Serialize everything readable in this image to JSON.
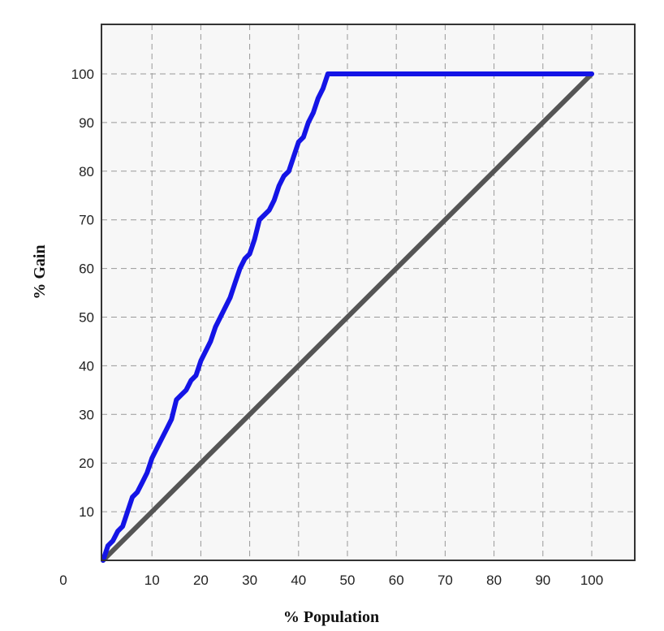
{
  "chart_data": {
    "type": "line",
    "title": "",
    "xlabel": "% Population",
    "ylabel": "% Gain",
    "xlim": [
      0,
      100
    ],
    "ylim": [
      0,
      110
    ],
    "x_ticks": [
      0,
      10,
      20,
      30,
      40,
      50,
      60,
      70,
      80,
      90,
      100
    ],
    "x_tick_labels": [
      "0",
      "10",
      "20",
      "30",
      "40",
      "50",
      "60",
      "70",
      "80",
      "90",
      "100"
    ],
    "y_ticks": [
      10,
      20,
      30,
      40,
      50,
      60,
      70,
      80,
      90,
      100
    ],
    "y_tick_labels": [
      "10",
      "20",
      "30",
      "40",
      "50",
      "60",
      "70",
      "80",
      "90",
      "100"
    ],
    "grid": true,
    "grid_style": "dashed",
    "legend": "none",
    "series": [
      {
        "color": "#1414e6",
        "x": [
          0,
          1,
          2,
          3,
          4,
          5,
          6,
          7,
          8,
          9,
          10,
          11,
          12,
          13,
          14,
          15,
          16,
          17,
          18,
          19,
          20,
          21,
          22,
          23,
          24,
          25,
          26,
          27,
          28,
          29,
          30,
          31,
          32,
          33,
          34,
          35,
          36,
          37,
          38,
          39,
          40,
          41,
          42,
          43,
          44,
          45,
          46,
          47,
          48,
          49,
          50,
          60,
          70,
          80,
          90,
          100
        ],
        "y": [
          0,
          3,
          4,
          6,
          7,
          10,
          13,
          14,
          16,
          18,
          21,
          23,
          25,
          27,
          29,
          33,
          34,
          35,
          37,
          38,
          41,
          43,
          45,
          48,
          50,
          52,
          54,
          57,
          60,
          62,
          63,
          66,
          70,
          71,
          72,
          74,
          77,
          79,
          80,
          83,
          86,
          87,
          90,
          92,
          95,
          97,
          100,
          100,
          100,
          100,
          100,
          100,
          100,
          100,
          100,
          100
        ]
      },
      {
        "color": "#555555",
        "x": [
          0,
          100
        ],
        "y": [
          0,
          100
        ]
      }
    ]
  },
  "colors": {
    "background": "#ffffff",
    "plot_background": "#f7f7f7",
    "grid": "#999999",
    "frame": "#333333"
  }
}
